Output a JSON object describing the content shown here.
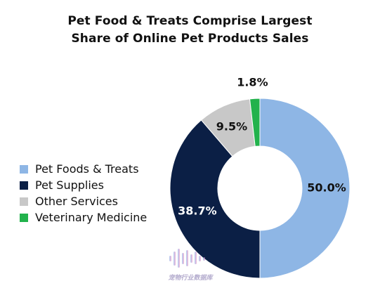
{
  "chart_data": {
    "type": "pie",
    "subtype": "donut",
    "title_lines": [
      "Pet Food & Treats Comprise Largest",
      "Share of Online Pet Products Sales"
    ],
    "legend_placement": "left",
    "slices": [
      {
        "label": "Pet Foods & Treats",
        "value": 50.0,
        "display": "50.0%",
        "color": "#8eb6e5",
        "label_color": "#111111"
      },
      {
        "label": "Pet Supplies",
        "value": 38.7,
        "display": "38.7%",
        "color": "#0b1f45",
        "label_color": "#ffffff"
      },
      {
        "label": "Other Services",
        "value": 9.5,
        "display": "9.5%",
        "color": "#c8c8c8",
        "label_color": "#111111"
      },
      {
        "label": "Veterinary Medicine",
        "value": 1.8,
        "display": "1.8%",
        "color": "#22b24c",
        "label_color": "#111111"
      }
    ]
  },
  "watermark": {
    "text": "宠物行业数据库",
    "icon": "sound-wave-logo-icon"
  }
}
